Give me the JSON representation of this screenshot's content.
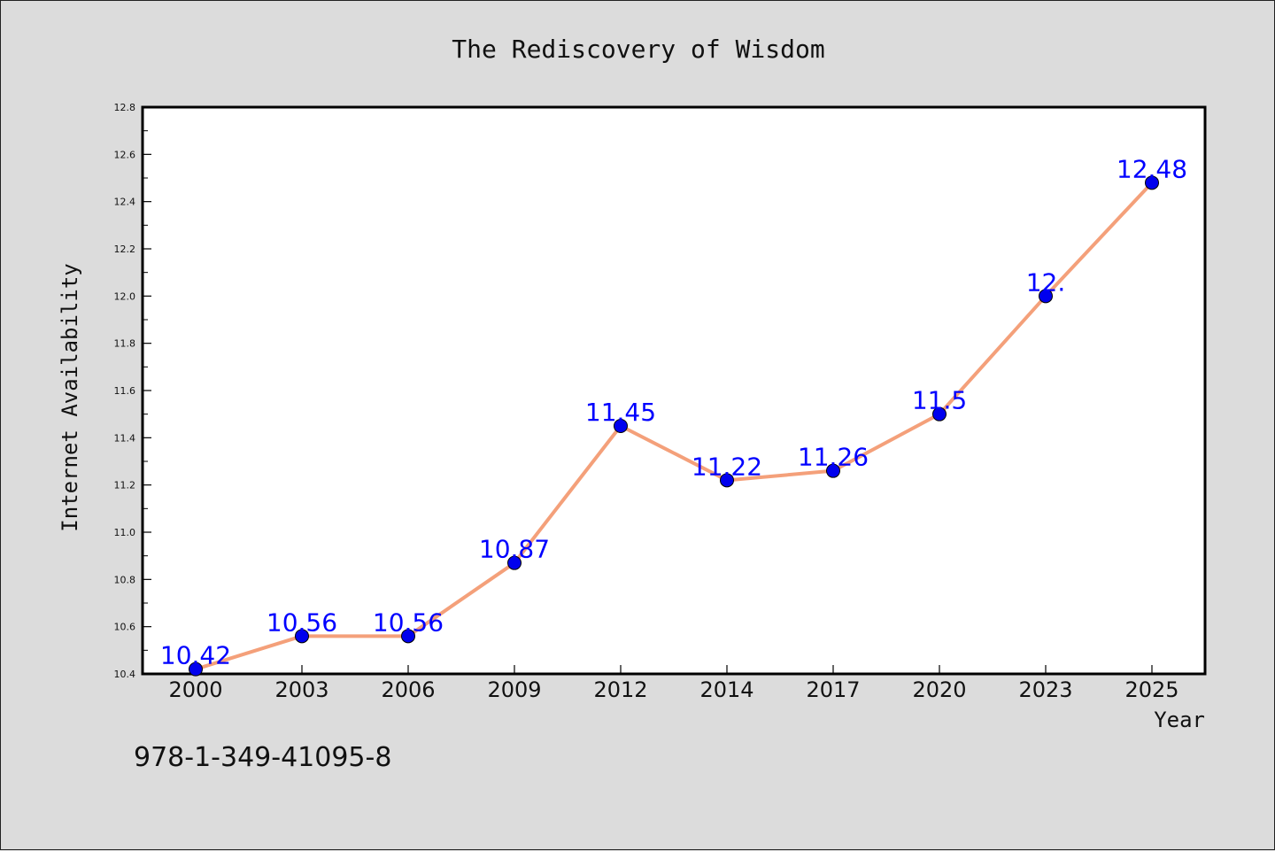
{
  "chart_data": {
    "type": "line",
    "title": "The Rediscovery of Wisdom",
    "xlabel": "Year",
    "ylabel": "Internet Availability",
    "categories": [
      "2000",
      "2003",
      "2006",
      "2009",
      "2012",
      "2014",
      "2017",
      "2020",
      "2023",
      "2025"
    ],
    "series": [
      {
        "values": [
          10.42,
          10.56,
          10.56,
          10.87,
          11.45,
          11.22,
          11.26,
          11.5,
          12.0,
          12.48
        ],
        "labels": [
          "10.42",
          "10.56",
          "10.56",
          "10.87",
          "11.45",
          "11.22",
          "11.26",
          "11.5",
          "12.",
          "12.48"
        ]
      }
    ],
    "ylim": [
      10.4,
      12.8
    ],
    "yticks": [
      "10.4",
      "10.6",
      "10.8",
      "11.0",
      "11.2",
      "11.4",
      "11.6",
      "11.8",
      "12.0",
      "12.2",
      "12.4",
      "12.6",
      "12.8"
    ],
    "grid": false,
    "line_color": "#f4a07a",
    "marker_color": "#0000ee",
    "label_color": "#0000ff"
  },
  "footer": {
    "isbn": "978-1-349-41095-8"
  }
}
